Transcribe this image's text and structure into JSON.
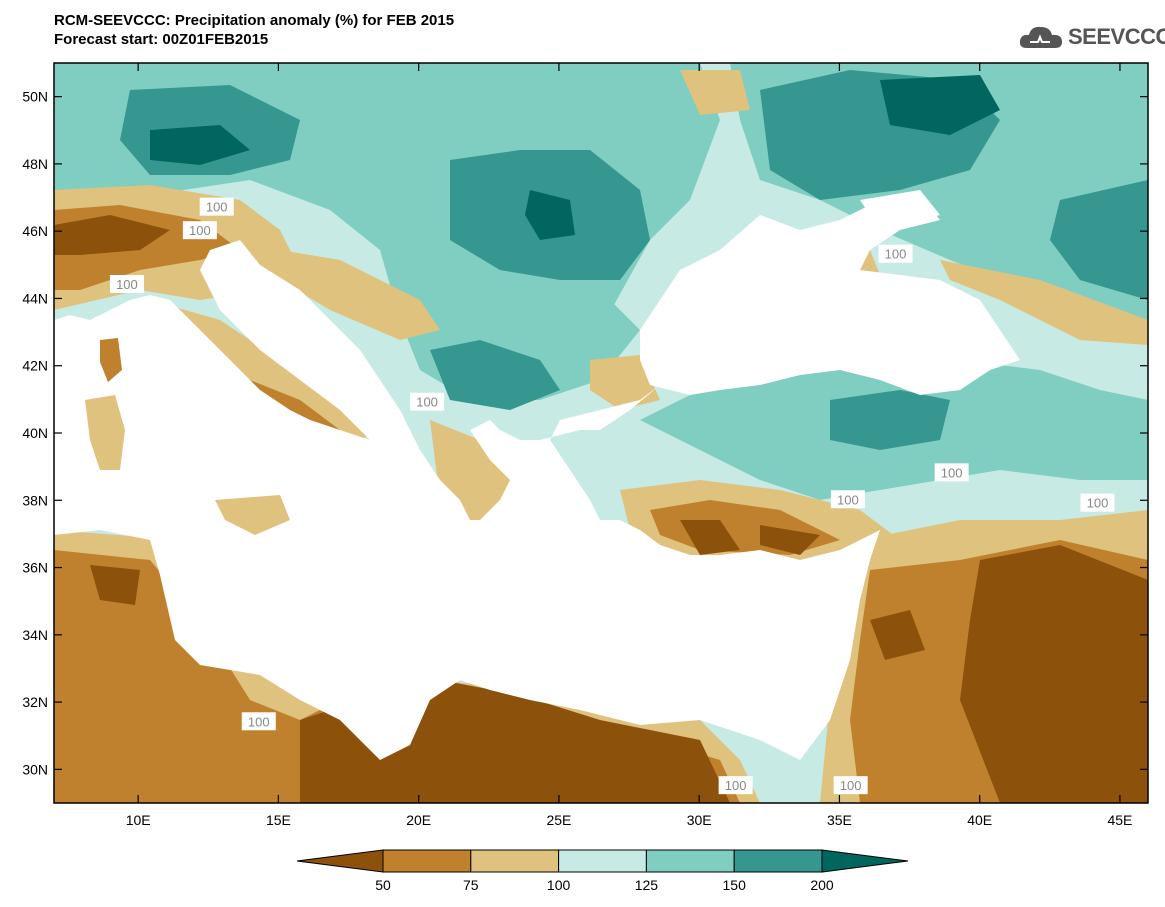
{
  "title": {
    "line1": "RCM-SEEVCCC: Precipitation anomaly (%) for FEB 2015",
    "line2": "Forecast start: 00Z01FEB2015"
  },
  "logo": {
    "text": "SEEVCCC",
    "icon": "cloud-icon"
  },
  "colors": {
    "frame": "#000000",
    "land_white": "#ffffff",
    "border": "#000000",
    "contour_100": "#aaaaaa"
  },
  "chart_data": {
    "type": "heatmap",
    "variable": "Precipitation anomaly (%)",
    "x_ticks": [
      "10E",
      "15E",
      "20E",
      "25E",
      "30E",
      "35E",
      "40E",
      "45E"
    ],
    "x_tick_values": [
      10,
      15,
      20,
      25,
      30,
      35,
      40,
      45
    ],
    "y_ticks": [
      "50N",
      "48N",
      "46N",
      "44N",
      "42N",
      "40N",
      "38N",
      "36N",
      "34N",
      "32N",
      "30N"
    ],
    "y_tick_values": [
      50,
      48,
      46,
      44,
      42,
      40,
      38,
      36,
      34,
      32,
      30
    ],
    "lon_range": [
      7,
      46
    ],
    "lat_range": [
      29,
      51
    ],
    "colorbar": {
      "labels": [
        "50",
        "75",
        "100",
        "125",
        "150",
        "200"
      ],
      "bins": [
        {
          "range": "<50",
          "color": "#8c510a"
        },
        {
          "range": "50-75",
          "color": "#bf812d"
        },
        {
          "range": "75-100",
          "color": "#dfc27d"
        },
        {
          "range": "100-125",
          "color": "#c7eae5"
        },
        {
          "range": "125-150",
          "color": "#80cdc1"
        },
        {
          "range": "150-200",
          "color": "#35978f"
        },
        {
          "range": ">200",
          "color": "#01665e"
        }
      ]
    },
    "contour_labels": [
      {
        "text": "100",
        "lon": 12.8,
        "lat": 46.7
      },
      {
        "text": "100",
        "lon": 12.2,
        "lat": 46.0
      },
      {
        "text": "100",
        "lon": 9.6,
        "lat": 44.4
      },
      {
        "text": "100",
        "lon": 20.3,
        "lat": 40.9
      },
      {
        "text": "100",
        "lon": 37.0,
        "lat": 45.3
      },
      {
        "text": "100",
        "lon": 39.0,
        "lat": 38.8
      },
      {
        "text": "100",
        "lon": 35.3,
        "lat": 38.0
      },
      {
        "text": "100",
        "lon": 44.2,
        "lat": 37.9
      },
      {
        "text": "100",
        "lon": 14.3,
        "lat": 31.4
      },
      {
        "text": "100",
        "lon": 31.3,
        "lat": 29.5
      },
      {
        "text": "100",
        "lon": 35.4,
        "lat": 29.5
      }
    ]
  }
}
